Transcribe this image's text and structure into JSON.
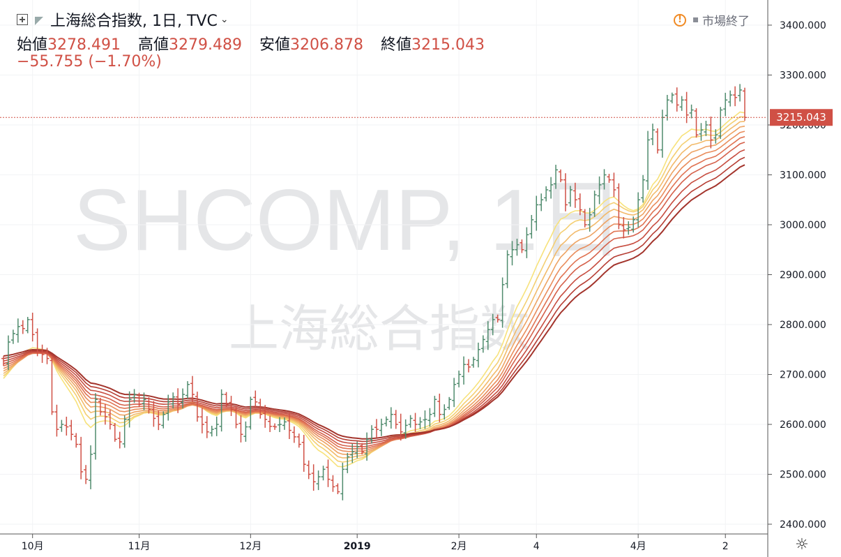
{
  "header": {
    "symbol_line": "上海総合指数, 1日, TVC",
    "open_label": "始値",
    "open_value": "3278.491",
    "high_label": "高値",
    "high_value": "3279.489",
    "low_label": "安値",
    "low_value": "3206.878",
    "close_label": "終値",
    "close_value": "3215.043",
    "change": "−55.755 (−1.70%)"
  },
  "market_status": "市場終了",
  "watermark": {
    "ticker": "SHCOMP, 1日",
    "name": "上海総合指数"
  },
  "colors": {
    "up": "#4f8b6d",
    "down": "#d05045",
    "ribbon": [
      "#f7e27b",
      "#f4cf72",
      "#f2ba6a",
      "#eea363",
      "#e98c5b",
      "#e07352",
      "#d5604a",
      "#c74d40",
      "#b63d33",
      "#a3342c"
    ]
  },
  "chart_data": {
    "type": "candlestick",
    "ylim": [
      2380,
      3440
    ],
    "yticks": [
      "3400.000",
      "3300.000",
      "3200.000",
      "3100.000",
      "3000.000",
      "2900.000",
      "2800.000",
      "2700.000",
      "2600.000",
      "2500.000",
      "2400.000"
    ],
    "ytick_values": [
      3400,
      3300,
      3200,
      3100,
      3000,
      2900,
      2800,
      2700,
      2600,
      2500,
      2400
    ],
    "xticks": [
      {
        "label": "10月",
        "bar": 6
      },
      {
        "label": "11月",
        "bar": 28
      },
      {
        "label": "12月",
        "bar": 51
      },
      {
        "label": "2019",
        "bar": 73
      },
      {
        "label": "2月",
        "bar": 94
      },
      {
        "label": "4",
        "bar": 110
      },
      {
        "label": "4月",
        "bar": 131
      },
      {
        "label": "2",
        "bar": 149
      }
    ],
    "last_price_label": "3215.043",
    "last_price": 3215.043,
    "closes": [
      2722,
      2765,
      2782,
      2796,
      2792,
      2810,
      2780,
      2745,
      2740,
      2732,
      2625,
      2590,
      2600,
      2595,
      2580,
      2560,
      2505,
      2490,
      2540,
      2650,
      2625,
      2615,
      2600,
      2570,
      2565,
      2610,
      2650,
      2660,
      2640,
      2650,
      2630,
      2612,
      2600,
      2620,
      2645,
      2655,
      2640,
      2660,
      2680,
      2660,
      2615,
      2600,
      2585,
      2590,
      2600,
      2660,
      2640,
      2630,
      2600,
      2580,
      2595,
      2650,
      2645,
      2620,
      2610,
      2596,
      2595,
      2600,
      2605,
      2588,
      2575,
      2560,
      2520,
      2500,
      2485,
      2495,
      2510,
      2490,
      2475,
      2465,
      2510,
      2535,
      2545,
      2555,
      2545,
      2570,
      2590,
      2590,
      2600,
      2610,
      2620,
      2600,
      2585,
      2598,
      2612,
      2600,
      2605,
      2610,
      2620,
      2650,
      2620,
      2630,
      2650,
      2680,
      2700,
      2720,
      2715,
      2730,
      2750,
      2770,
      2790,
      2810,
      2810,
      2880,
      2940,
      2950,
      2960,
      2950,
      2980,
      3010,
      3040,
      3050,
      3070,
      3080,
      3110,
      3090,
      3040,
      3070,
      3050,
      3030,
      3000,
      3020,
      3060,
      3080,
      3100,
      3090,
      3070,
      3000,
      2990,
      2995,
      3010,
      3050,
      3090,
      3170,
      3190,
      3150,
      3215,
      3250,
      3260,
      3240,
      3250,
      3220,
      3230,
      3180,
      3190,
      3200,
      3170,
      3180,
      3230,
      3250,
      3260,
      3255,
      3270,
      3215
    ]
  }
}
